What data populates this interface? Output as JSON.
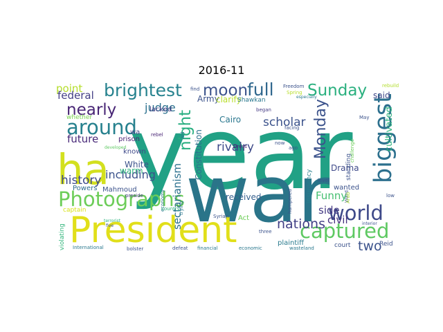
{
  "chart_data": {
    "type": "wordcloud",
    "title": "2016-11",
    "words": [
      {
        "text": "year",
        "weight": 100,
        "color": "#21a185",
        "rotate": false
      },
      {
        "text": "war",
        "weight": 78,
        "color": "#2a7489",
        "rotate": false
      },
      {
        "text": "ha",
        "weight": 42,
        "color": "#d3e01f",
        "rotate": false
      },
      {
        "text": "President",
        "weight": 36,
        "color": "#e1df1a",
        "rotate": false
      },
      {
        "text": "biggest",
        "weight": 24,
        "color": "#2d708e",
        "rotate": true
      },
      {
        "text": "Photographs",
        "weight": 20,
        "color": "#6dcd59",
        "rotate": false
      },
      {
        "text": "around",
        "weight": 20,
        "color": "#27818e",
        "rotate": false
      },
      {
        "text": "captured",
        "weight": 20,
        "color": "#5ec962",
        "rotate": false
      },
      {
        "text": "world",
        "weight": 20,
        "color": "#3e4989",
        "rotate": false
      },
      {
        "text": "brightest",
        "weight": 17,
        "color": "#26828e",
        "rotate": false
      },
      {
        "text": "full",
        "weight": 17,
        "color": "#31688e",
        "rotate": false
      },
      {
        "text": "moon",
        "weight": 16,
        "color": "#3b528b",
        "rotate": false
      },
      {
        "text": "Sunday",
        "weight": 16,
        "color": "#2ab07f",
        "rotate": false
      },
      {
        "text": "nearly",
        "weight": 16,
        "color": "#482575",
        "rotate": false
      },
      {
        "text": "night",
        "weight": 16,
        "color": "#28ae80",
        "rotate": true
      },
      {
        "text": "Monday",
        "weight": 15,
        "color": "#3b528b",
        "rotate": true
      },
      {
        "text": "nations",
        "weight": 13,
        "color": "#424086",
        "rotate": false
      },
      {
        "text": "two",
        "weight": 13,
        "color": "#3b528b",
        "rotate": false
      },
      {
        "text": "rivalry",
        "weight": 12,
        "color": "#3e4a89",
        "rotate": false
      },
      {
        "text": "history",
        "weight": 12,
        "color": "#3e4989",
        "rotate": false
      },
      {
        "text": "scholar",
        "weight": 12,
        "color": "#3b528b",
        "rotate": false
      },
      {
        "text": "judge",
        "weight": 11,
        "color": "#2c718e",
        "rotate": false
      },
      {
        "text": "including",
        "weight": 11,
        "color": "#3b528b",
        "rotate": false
      },
      {
        "text": "future",
        "weight": 10,
        "color": "#482878",
        "rotate": false
      },
      {
        "text": "point",
        "weight": 10,
        "color": "#b5de2b",
        "rotate": false
      },
      {
        "text": "sectarianism",
        "weight": 10,
        "color": "#2c718e",
        "rotate": true
      },
      {
        "text": "cultivated",
        "weight": 9,
        "color": "#2db27d",
        "rotate": true
      },
      {
        "text": "federal",
        "weight": 10,
        "color": "#433e85",
        "rotate": false
      },
      {
        "text": "Funny",
        "weight": 10,
        "color": "#44bf70",
        "rotate": false
      },
      {
        "text": "side",
        "weight": 10,
        "color": "#443983",
        "rotate": false
      },
      {
        "text": "civil",
        "weight": 10,
        "color": "#46327e",
        "rotate": false
      },
      {
        "text": "Army",
        "weight": 8,
        "color": "#3b528b",
        "rotate": false
      },
      {
        "text": "clarify",
        "weight": 8,
        "color": "#b8de29",
        "rotate": false
      },
      {
        "text": "said",
        "weight": 8,
        "color": "#404688",
        "rotate": false
      },
      {
        "text": "White",
        "weight": 8,
        "color": "#3b528b",
        "rotate": false
      },
      {
        "text": "warm",
        "weight": 8,
        "color": "#2db27d",
        "rotate": false
      },
      {
        "text": "received",
        "weight": 8,
        "color": "#355f8d",
        "rotate": false
      },
      {
        "text": "Drama",
        "weight": 8,
        "color": "#3e4989",
        "rotate": false
      },
      {
        "text": "Constitution",
        "weight": 8,
        "color": "#2d708e",
        "rotate": true
      },
      {
        "text": "Cairo",
        "weight": 8,
        "color": "#2a778e",
        "rotate": false
      },
      {
        "text": "wanted",
        "weight": 7,
        "color": "#3b528b",
        "rotate": false
      },
      {
        "text": "Powers",
        "weight": 7,
        "color": "#2f6b8e",
        "rotate": false
      },
      {
        "text": "known",
        "weight": 7,
        "color": "#3e4989",
        "rotate": false
      },
      {
        "text": "lacked",
        "weight": 7,
        "color": "#443983",
        "rotate": false
      },
      {
        "text": "wa",
        "weight": 7,
        "color": "#414487",
        "rotate": false
      },
      {
        "text": "prison",
        "weight": 7,
        "color": "#482173",
        "rotate": false
      },
      {
        "text": "Mahmoud",
        "weight": 7,
        "color": "#3b528b",
        "rotate": false
      },
      {
        "text": "Act",
        "weight": 7,
        "color": "#6ece58",
        "rotate": false
      },
      {
        "text": "plaintiff",
        "weight": 7,
        "color": "#297b8e",
        "rotate": false
      },
      {
        "text": "court",
        "weight": 6,
        "color": "#3b528b",
        "rotate": false
      },
      {
        "text": "Reid",
        "weight": 6,
        "color": "#3b528b",
        "rotate": false
      },
      {
        "text": "captain",
        "weight": 6,
        "color": "#d8e219",
        "rotate": false
      },
      {
        "text": "whether",
        "weight": 6,
        "color": "#7ad151",
        "rotate": false
      },
      {
        "text": "standing",
        "weight": 6,
        "color": "#3b528b",
        "rotate": true
      },
      {
        "text": "insurgency",
        "weight": 6,
        "color": "#277f8e",
        "rotate": true
      },
      {
        "text": "violating",
        "weight": 6,
        "color": "#31b57b",
        "rotate": true
      },
      {
        "text": "Shawkan",
        "weight": 6,
        "color": "#2a788e",
        "rotate": false
      },
      {
        "text": "Freedom",
        "weight": 5,
        "color": "#3b528b",
        "rotate": false
      },
      {
        "text": "Spring",
        "weight": 5,
        "color": "#b8de29",
        "rotate": false
      },
      {
        "text": "especially",
        "weight": 4,
        "color": "#2a788e",
        "rotate": false
      },
      {
        "text": "rebuild",
        "weight": 5,
        "color": "#b2dd2d",
        "rotate": false
      },
      {
        "text": "find",
        "weight": 5,
        "color": "#3b528b",
        "rotate": false
      },
      {
        "text": "began",
        "weight": 5,
        "color": "#443983",
        "rotate": false
      },
      {
        "text": "facing",
        "weight": 5,
        "color": "#3b528b",
        "rotate": false
      },
      {
        "text": "May",
        "weight": 5,
        "color": "#3b528b",
        "rotate": false
      },
      {
        "text": "rebel",
        "weight": 5,
        "color": "#482475",
        "rotate": false
      },
      {
        "text": "aid",
        "weight": 5,
        "color": "#2c728e",
        "rotate": true
      },
      {
        "text": "developed",
        "weight": 4,
        "color": "#5ec962",
        "rotate": false
      },
      {
        "text": "Dress",
        "weight": 5,
        "color": "#481f70",
        "rotate": false
      },
      {
        "text": "now",
        "weight": 5,
        "color": "#3b528b",
        "rotate": false
      },
      {
        "text": "ago",
        "weight": 5,
        "color": "#3b528b",
        "rotate": false
      },
      {
        "text": "challenge",
        "weight": 5,
        "color": "#6ccd5a",
        "rotate": true
      },
      {
        "text": "level",
        "weight": 5,
        "color": "#3b528b",
        "rotate": false
      },
      {
        "text": "Ward",
        "weight": 5,
        "color": "#3b528b",
        "rotate": true
      },
      {
        "text": "Arab",
        "weight": 5,
        "color": "#a8db34",
        "rotate": true
      },
      {
        "text": "low",
        "weight": 5,
        "color": "#3b528b",
        "rotate": false
      },
      {
        "text": "preside",
        "weight": 5,
        "color": "#443983",
        "rotate": false
      },
      {
        "text": "economy",
        "weight": 5,
        "color": "#2a788e",
        "rotate": true
      },
      {
        "text": "trying",
        "weight": 5,
        "color": "#2a788e",
        "rotate": true
      },
      {
        "text": "country",
        "weight": 5,
        "color": "#2db27d",
        "rotate": false
      },
      {
        "text": "hampered",
        "weight": 5,
        "color": "#3b528b",
        "rotate": true
      },
      {
        "text": "three",
        "weight": 5,
        "color": "#3b528b",
        "rotate": false
      },
      {
        "text": "Syrian",
        "weight": 5,
        "color": "#3b528b",
        "rotate": false
      },
      {
        "text": "interior",
        "weight": 4,
        "color": "#3b528b",
        "rotate": false
      },
      {
        "text": "terrorist",
        "weight": 4,
        "color": "#2db27d",
        "rotate": false
      },
      {
        "text": "five",
        "weight": 4,
        "color": "#3b528b",
        "rotate": false
      },
      {
        "text": "International",
        "weight": 5,
        "color": "#2a788e",
        "rotate": false
      },
      {
        "text": "bolster",
        "weight": 5,
        "color": "#3b528b",
        "rotate": false
      },
      {
        "text": "defeat",
        "weight": 5,
        "color": "#3b528b",
        "rotate": false
      },
      {
        "text": "financial",
        "weight": 5,
        "color": "#2a788e",
        "rotate": false
      },
      {
        "text": "economic",
        "weight": 5,
        "color": "#2a788e",
        "rotate": false
      },
      {
        "text": "wasteland",
        "weight": 5,
        "color": "#2a788e",
        "rotate": false
      }
    ]
  }
}
